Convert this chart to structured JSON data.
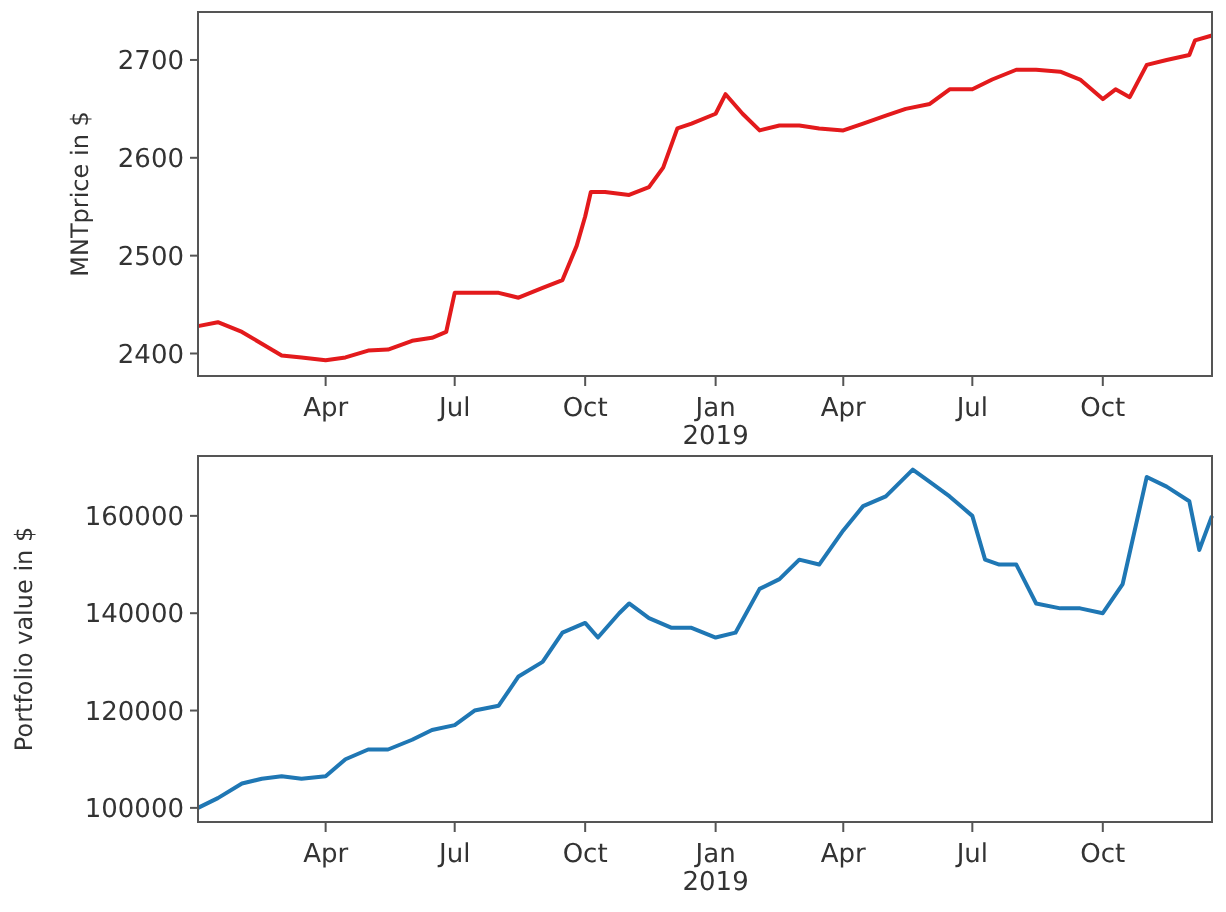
{
  "chart_data": [
    {
      "type": "line",
      "ylabel": "MNTprice in $",
      "xlim": [
        "2018-01-01",
        "2019-12-17"
      ],
      "ylim": [
        2377,
        2749
      ],
      "yticks": [
        2400,
        2500,
        2600,
        2700
      ],
      "xticks": [
        {
          "value": "2018-04-01",
          "label": "Apr"
        },
        {
          "value": "2018-07-01",
          "label": "Jul"
        },
        {
          "value": "2018-10-01",
          "label": "Oct"
        },
        {
          "value": "2019-01-01",
          "label": "Jan\n2019"
        },
        {
          "value": "2019-04-01",
          "label": "Apr"
        },
        {
          "value": "2019-07-01",
          "label": "Jul"
        },
        {
          "value": "2019-10-01",
          "label": "Oct"
        }
      ],
      "series": [
        {
          "color": "#e31a1c",
          "x": [
            "2018-01-01",
            "2018-01-15",
            "2018-02-01",
            "2018-02-15",
            "2018-03-01",
            "2018-03-15",
            "2018-04-01",
            "2018-04-15",
            "2018-05-01",
            "2018-05-15",
            "2018-06-01",
            "2018-06-15",
            "2018-06-25",
            "2018-07-01",
            "2018-07-15",
            "2018-08-01",
            "2018-08-15",
            "2018-09-01",
            "2018-09-15",
            "2018-09-25",
            "2018-10-01",
            "2018-10-05",
            "2018-10-15",
            "2018-11-01",
            "2018-11-15",
            "2018-11-25",
            "2018-12-05",
            "2018-12-15",
            "2019-01-01",
            "2019-01-08",
            "2019-01-20",
            "2019-02-01",
            "2019-02-15",
            "2019-03-01",
            "2019-03-15",
            "2019-04-01",
            "2019-04-15",
            "2019-05-01",
            "2019-05-15",
            "2019-06-01",
            "2019-06-15",
            "2019-07-01",
            "2019-07-15",
            "2019-08-01",
            "2019-08-15",
            "2019-09-01",
            "2019-09-15",
            "2019-10-01",
            "2019-10-10",
            "2019-10-20",
            "2019-11-01",
            "2019-11-15",
            "2019-12-01",
            "2019-12-05",
            "2019-12-17"
          ],
          "values": [
            2428,
            2432,
            2422,
            2410,
            2398,
            2396,
            2393,
            2396,
            2403,
            2404,
            2413,
            2416,
            2422,
            2462,
            2462,
            2462,
            2457,
            2467,
            2475,
            2510,
            2540,
            2565,
            2565,
            2562,
            2570,
            2590,
            2630,
            2635,
            2645,
            2665,
            2645,
            2628,
            2633,
            2633,
            2630,
            2628,
            2635,
            2643,
            2650,
            2655,
            2670,
            2670,
            2680,
            2690,
            2690,
            2688,
            2680,
            2660,
            2670,
            2662,
            2695,
            2700,
            2705,
            2720,
            2725
          ]
        }
      ]
    },
    {
      "type": "line",
      "ylabel": "Portfolio value in $",
      "xlim": [
        "2018-01-01",
        "2019-12-17"
      ],
      "ylim": [
        97100,
        172300
      ],
      "yticks": [
        100000,
        120000,
        140000,
        160000
      ],
      "xticks": [
        {
          "value": "2018-04-01",
          "label": "Apr"
        },
        {
          "value": "2018-07-01",
          "label": "Jul"
        },
        {
          "value": "2018-10-01",
          "label": "Oct"
        },
        {
          "value": "2019-01-01",
          "label": "Jan\n2019"
        },
        {
          "value": "2019-04-01",
          "label": "Apr"
        },
        {
          "value": "2019-07-01",
          "label": "Jul"
        },
        {
          "value": "2019-10-01",
          "label": "Oct"
        }
      ],
      "series": [
        {
          "color": "#1f77b4",
          "x": [
            "2018-01-01",
            "2018-01-15",
            "2018-02-01",
            "2018-02-15",
            "2018-03-01",
            "2018-03-15",
            "2018-04-01",
            "2018-04-15",
            "2018-05-01",
            "2018-05-15",
            "2018-06-01",
            "2018-06-15",
            "2018-07-01",
            "2018-07-15",
            "2018-08-01",
            "2018-08-15",
            "2018-09-01",
            "2018-09-15",
            "2018-10-01",
            "2018-10-10",
            "2018-10-25",
            "2018-11-01",
            "2018-11-15",
            "2018-12-01",
            "2018-12-15",
            "2019-01-01",
            "2019-01-15",
            "2019-02-01",
            "2019-02-15",
            "2019-03-01",
            "2019-03-15",
            "2019-04-01",
            "2019-04-15",
            "2019-05-01",
            "2019-05-20",
            "2019-06-01",
            "2019-06-15",
            "2019-07-01",
            "2019-07-10",
            "2019-07-20",
            "2019-08-01",
            "2019-08-15",
            "2019-09-01",
            "2019-09-15",
            "2019-10-01",
            "2019-10-15",
            "2019-11-01",
            "2019-11-15",
            "2019-12-01",
            "2019-12-08",
            "2019-12-17"
          ],
          "values": [
            100000,
            102000,
            105000,
            106000,
            106500,
            106000,
            106500,
            110000,
            112000,
            112000,
            114000,
            116000,
            117000,
            120000,
            121000,
            127000,
            130000,
            136000,
            138000,
            135000,
            140000,
            142000,
            139000,
            137000,
            137000,
            135000,
            136000,
            145000,
            147000,
            151000,
            150000,
            157000,
            162000,
            164000,
            169500,
            167000,
            164000,
            160000,
            151000,
            150000,
            150000,
            142000,
            141000,
            141000,
            140000,
            146000,
            168000,
            166000,
            163000,
            153000,
            160000
          ]
        }
      ]
    }
  ]
}
